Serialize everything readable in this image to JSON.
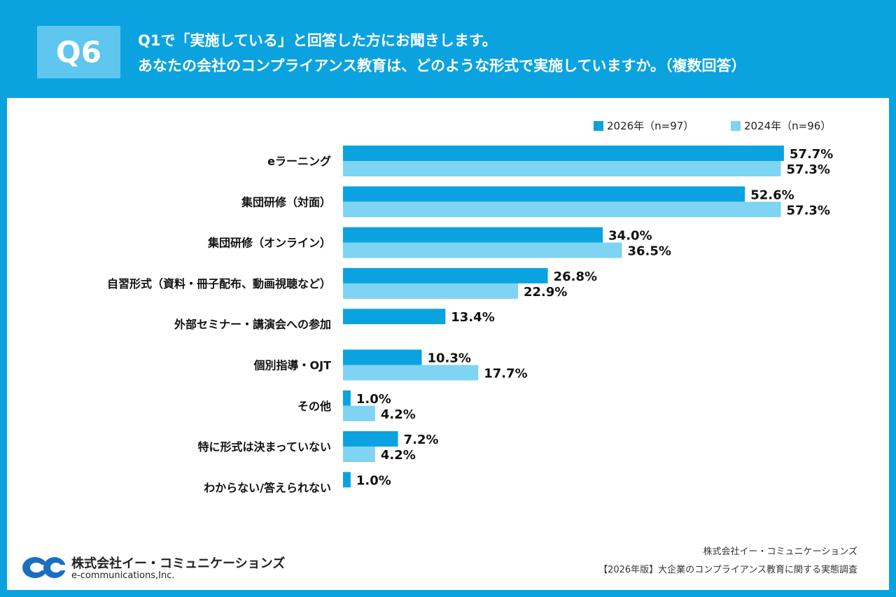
{
  "header": {
    "q_label": "Q6",
    "question_line1": "Q1で「実施している」と回答した方にお聞きします。",
    "question_line2": "あなたの会社のコンプライアンス教育は、どのような形式で実施していますか。（複数回答）"
  },
  "chart_data": {
    "type": "bar",
    "orientation": "horizontal",
    "categories": [
      "eラーニング",
      "集団研修（対面）",
      "集団研修（オンライン）",
      "自習形式（資料・冊子配布、動画視聴など）",
      "外部セミナー・講演会への参加",
      "個別指導・OJT",
      "その他",
      "特に形式は決まっていない",
      "わからない/答えられない"
    ],
    "series": [
      {
        "name": "2026年（n=97）",
        "color": "#0aa3e0",
        "values": [
          57.7,
          52.6,
          34.0,
          26.8,
          13.4,
          10.3,
          1.0,
          7.2,
          1.0
        ],
        "labels": [
          "57.7%",
          "52.6%",
          "34.0%",
          "26.8%",
          "13.4%",
          "10.3%",
          "1.0%",
          "7.2%",
          "1.0%"
        ]
      },
      {
        "name": "2024年（n=96）",
        "color": "#7fd3f3",
        "values": [
          57.3,
          57.3,
          36.5,
          22.9,
          null,
          17.7,
          4.2,
          4.2,
          null
        ],
        "labels": [
          "57.3%",
          "57.3%",
          "36.5%",
          "22.9%",
          null,
          "17.7%",
          "4.2%",
          "4.2%",
          null
        ]
      }
    ],
    "xlim": [
      0,
      60
    ],
    "legend_position": "top-right",
    "grid": false
  },
  "footer": {
    "company": "株式会社イー・コミュニケーションズ",
    "report": "【2026年版】大企業のコンプライアンス教育に関する実態調査"
  },
  "logo": {
    "name_ja": "株式会社イー・コミュニケーションズ",
    "name_en": "e-communications,Inc."
  }
}
